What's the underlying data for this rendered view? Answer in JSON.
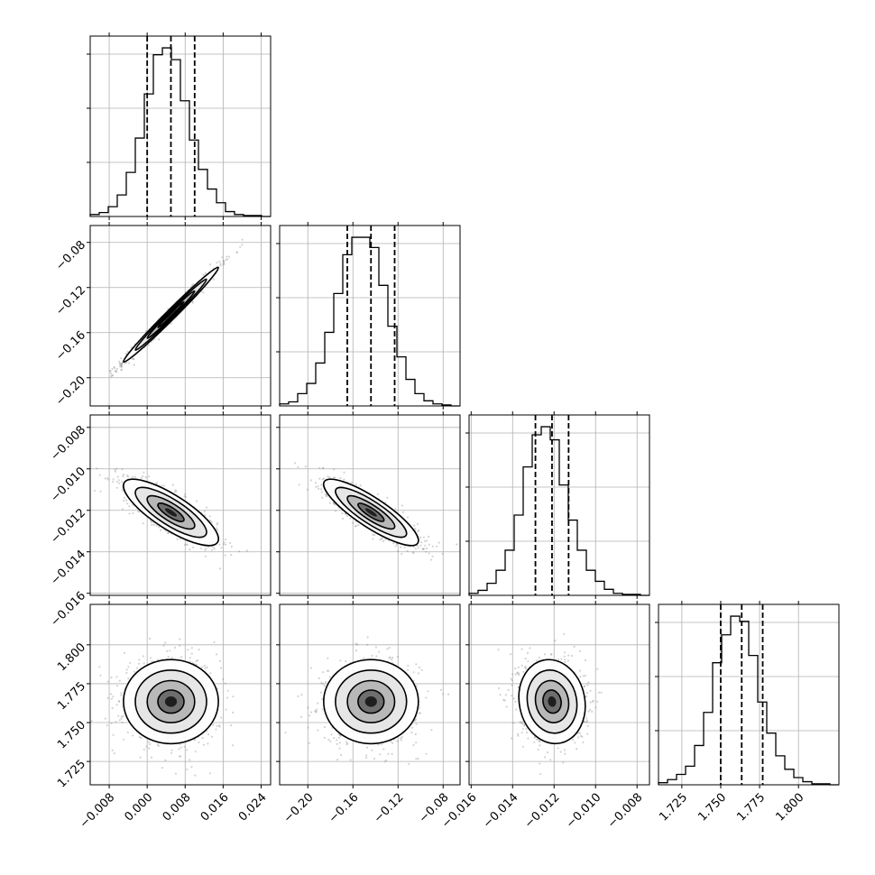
{
  "colors": {
    "ink": "#000000",
    "grid": "#b0b0b0",
    "frame": "#000000",
    "scatter": "#808080"
  },
  "chart_data": {
    "type": "corner",
    "grid": true,
    "quantile_lines": "dashed",
    "parameters": [
      {
        "range": [
          -0.012,
          0.026
        ],
        "ticks": [
          -0.008,
          0.0,
          0.008,
          0.016,
          0.024
        ],
        "tick_labels": [
          "−0.008",
          "0.000",
          "0.008",
          "0.016",
          "0.024"
        ],
        "quantiles": [
          0.0,
          0.005,
          0.01
        ],
        "histogram": {
          "edges_start": -0.012,
          "bin_width": 0.0019,
          "counts": [
            2,
            4,
            10,
            22,
            45,
            80,
            125,
            165,
            172,
            160,
            118,
            78,
            48,
            28,
            14,
            5,
            2,
            1,
            1,
            0
          ]
        }
      },
      {
        "range": [
          -0.225,
          -0.065
        ],
        "ticks": [
          -0.2,
          -0.16,
          -0.12,
          -0.08
        ],
        "tick_labels": [
          "−0.20",
          "−0.16",
          "−0.12",
          "−0.08"
        ],
        "quantiles": [
          -0.165,
          -0.144,
          -0.123
        ],
        "histogram": {
          "edges_start": -0.225,
          "bin_width": 0.008,
          "counts": [
            2,
            4,
            12,
            22,
            42,
            72,
            110,
            148,
            165,
            165,
            155,
            118,
            78,
            48,
            26,
            12,
            5,
            2,
            1,
            0
          ]
        }
      },
      {
        "range": [
          -0.0161,
          -0.0074
        ],
        "ticks": [
          -0.016,
          -0.014,
          -0.012,
          -0.01,
          -0.008
        ],
        "tick_labels": [
          "−0.016",
          "−0.014",
          "−0.012",
          "−0.010",
          "−0.008"
        ],
        "quantiles": [
          -0.0129,
          -0.0121,
          -0.0113
        ],
        "histogram": {
          "edges_start": -0.0161,
          "bin_width": 0.000435,
          "counts": [
            2,
            5,
            12,
            25,
            45,
            80,
            128,
            160,
            168,
            155,
            110,
            75,
            45,
            25,
            14,
            6,
            2,
            1,
            1,
            0
          ]
        }
      },
      {
        "range": [
          1.71,
          1.826
        ],
        "ticks": [
          1.725,
          1.75,
          1.775,
          1.8
        ],
        "tick_labels": [
          "1.725",
          "1.750",
          "1.775",
          "1.800"
        ],
        "quantiles": [
          1.75,
          1.7635,
          1.777
        ],
        "histogram": {
          "edges_start": 1.71,
          "bin_width": 0.0058,
          "counts": [
            2,
            5,
            10,
            18,
            38,
            70,
            118,
            145,
            163,
            158,
            125,
            80,
            50,
            28,
            15,
            7,
            3,
            1,
            1,
            0
          ]
        }
      }
    ],
    "correlations": [
      {
        "pair": [
          0,
          1
        ],
        "rho": 0.99
      },
      {
        "pair": [
          0,
          2
        ],
        "rho": -0.8
      },
      {
        "pair": [
          1,
          2
        ],
        "rho": -0.85
      },
      {
        "pair": [
          0,
          3
        ],
        "rho": 0.0
      },
      {
        "pair": [
          1,
          3
        ],
        "rho": 0.0
      },
      {
        "pair": [
          2,
          3
        ],
        "rho": -0.1
      }
    ]
  }
}
